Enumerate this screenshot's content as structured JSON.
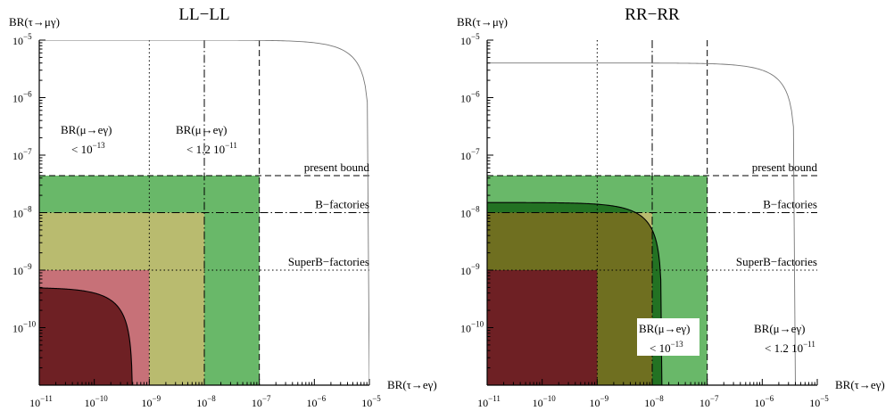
{
  "chart_data": [
    {
      "type": "region",
      "title": "LL−LL",
      "xlabel": "BR(τ→eγ)",
      "ylabel": "BR(τ→μγ)",
      "x_scale": "log",
      "y_scale": "log",
      "xlim": [
        1e-11,
        1e-05
      ],
      "ylim": [
        1e-11,
        1e-05
      ],
      "x_ticks": [
        -11,
        -10,
        -9,
        -8,
        -7,
        -6,
        -5
      ],
      "y_ticks": [
        -10,
        -9,
        -8,
        -7,
        -6,
        -5
      ],
      "hlines": [
        {
          "label": "present bound",
          "y": 4.4e-08,
          "style": "dashed"
        },
        {
          "label": "B−factories",
          "y": 1e-08,
          "style": "dashdot"
        },
        {
          "label": "SuperB−factories",
          "y": 1e-09,
          "style": "dotted"
        }
      ],
      "vlines": [
        {
          "x": 1e-09,
          "style": "dotted"
        },
        {
          "x": 1e-08,
          "style": "dashdot"
        },
        {
          "x": 1e-07,
          "style": "dashed"
        }
      ],
      "diagonals": [
        {
          "label_main": "BR(μ→eγ)",
          "label_bound": "< 10",
          "label_exp": "−13",
          "sum": 5e-10,
          "color": "#000000"
        },
        {
          "label_main": "BR(μ→eγ)",
          "label_bound": "< 1.2 10",
          "label_exp": "−11",
          "sum": 1e-05,
          "color": "#777777"
        }
      ],
      "regions": [
        {
          "x": [
            1e-11,
            1e-07
          ],
          "y": [
            1e-11,
            4.4e-08
          ],
          "color": "#b2fcb2"
        },
        {
          "x": [
            1e-11,
            1e-07
          ],
          "y": [
            1e-11,
            4.4e-08
          ],
          "color": "#69b869",
          "clip": "wide"
        },
        {
          "x": [
            1e-11,
            1e-08
          ],
          "y": [
            1e-11,
            1e-08
          ],
          "color": "#b9bb6f",
          "clip": "wide"
        },
        {
          "x": [
            1e-11,
            1e-09
          ],
          "y": [
            1e-11,
            1e-09
          ],
          "color": "#c77178",
          "clip": "wide"
        },
        {
          "x": [
            1e-11,
            1e-07
          ],
          "y": [
            1e-11,
            4.4e-08
          ],
          "color": "#237223",
          "clip": "narrow"
        },
        {
          "x": [
            1e-11,
            1e-08
          ],
          "y": [
            1e-11,
            1e-08
          ],
          "color": "#6f6f20",
          "clip": "narrow"
        },
        {
          "x": [
            1e-11,
            1e-09
          ],
          "y": [
            1e-11,
            1e-09
          ],
          "color": "#6e2024",
          "clip": "narrow"
        }
      ]
    },
    {
      "type": "region",
      "title": "RR−RR",
      "xlabel": "BR(τ→eγ)",
      "ylabel": "BR(τ→μγ)",
      "x_scale": "log",
      "y_scale": "log",
      "xlim": [
        1e-11,
        1e-05
      ],
      "ylim": [
        1e-11,
        1e-05
      ],
      "x_ticks": [
        -11,
        -10,
        -9,
        -8,
        -7,
        -6,
        -5
      ],
      "y_ticks": [
        -10,
        -9,
        -8,
        -7,
        -6,
        -5
      ],
      "hlines": [
        {
          "label": "present bound",
          "y": 4.4e-08,
          "style": "dashed"
        },
        {
          "label": "B−factories",
          "y": 1e-08,
          "style": "dashdot"
        },
        {
          "label": "SuperB−factories",
          "y": 1e-09,
          "style": "dotted"
        }
      ],
      "vlines": [
        {
          "x": 1e-09,
          "style": "dotted"
        },
        {
          "x": 1e-08,
          "style": "dashdot"
        },
        {
          "x": 1e-07,
          "style": "dashed"
        }
      ],
      "diagonals": [
        {
          "label_main": "BR(μ→eγ)",
          "label_bound": "< 10",
          "label_exp": "−13",
          "sum": 1.5e-08,
          "color": "#000000"
        },
        {
          "label_main": "BR(μ→eγ)",
          "label_bound": "< 1.2 10",
          "label_exp": "−11",
          "sum": 4e-06,
          "color": "#777777"
        }
      ],
      "regions": [
        {
          "x": [
            1e-11,
            1e-07
          ],
          "y": [
            1e-11,
            4.4e-08
          ],
          "color": "#b2fcb2"
        },
        {
          "x": [
            1e-11,
            1e-08
          ],
          "y": [
            1e-11,
            1e-08
          ],
          "color": "#fefeb4"
        },
        {
          "x": [
            1e-11,
            1e-07
          ],
          "y": [
            1e-11,
            4.4e-08
          ],
          "color": "#69b869",
          "clip": "wide"
        },
        {
          "x": [
            1e-11,
            1e-08
          ],
          "y": [
            1e-11,
            1e-08
          ],
          "color": "#b9bb6f",
          "clip": "wide"
        },
        {
          "x": [
            1e-11,
            1e-09
          ],
          "y": [
            1e-11,
            1e-09
          ],
          "color": "#c77178",
          "clip": "wide"
        },
        {
          "x": [
            1e-11,
            1e-07
          ],
          "y": [
            1e-11,
            4.4e-08
          ],
          "color": "#237223",
          "clip": "narrow"
        },
        {
          "x": [
            1e-11,
            1e-08
          ],
          "y": [
            1e-11,
            1e-08
          ],
          "color": "#6f6f20",
          "clip": "narrow"
        },
        {
          "x": [
            1e-11,
            1e-09
          ],
          "y": [
            1e-11,
            1e-09
          ],
          "color": "#6e2024",
          "clip": "narrow"
        }
      ]
    }
  ]
}
